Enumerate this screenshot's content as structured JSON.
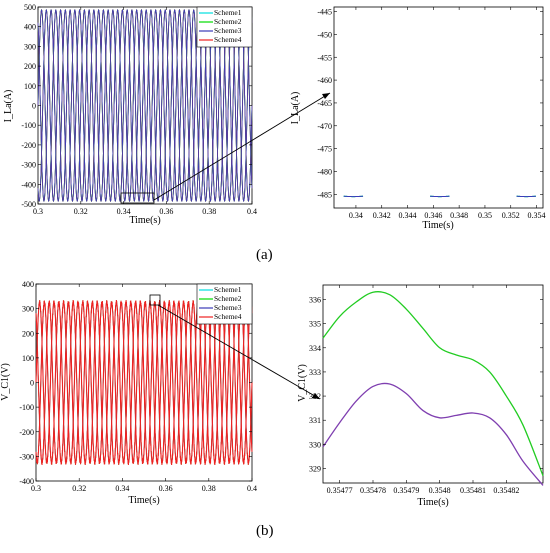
{
  "panels": {
    "a": "(a)",
    "b": "(b)"
  },
  "colors": {
    "scheme1": "#00e0e0",
    "scheme2": "#00dd00",
    "scheme3": "#3b3bb8",
    "scheme4": "#ee2222",
    "zoom_main_green": "#22cc22",
    "zoom_main_purple": "#7f3fb0"
  },
  "chart_data": [
    {
      "id": "a-main",
      "type": "line",
      "xlabel": "Time(s)",
      "ylabel": "I_La(A)",
      "xlim": [
        0.3,
        0.4
      ],
      "ylim": [
        -500,
        500
      ],
      "xticks": [
        0.3,
        0.32,
        0.34,
        0.36,
        0.38,
        0.4
      ],
      "yticks": [
        500,
        400,
        300,
        200,
        100,
        0,
        -100,
        -200,
        -300,
        -400,
        -500
      ],
      "xtick_labels": [
        "0.3",
        "0.32",
        "0.34",
        "0.36",
        "0.38",
        "0.4"
      ],
      "ytick_labels": [
        "500",
        "400",
        "300",
        "200",
        "100",
        "0",
        "-100",
        "-200",
        "-300",
        "-400",
        "-500"
      ],
      "grid": false,
      "legend_position": "top-right",
      "series": [
        {
          "name": "Scheme1",
          "waveform": "three-phase sinusoid",
          "amplitude": 485,
          "frequency_hz": 150
        },
        {
          "name": "Scheme2",
          "waveform": "three-phase sinusoid",
          "amplitude": 485,
          "frequency_hz": 150
        },
        {
          "name": "Scheme3",
          "waveform": "three-phase sinusoid",
          "amplitude": 485,
          "frequency_hz": 150
        },
        {
          "name": "Scheme4",
          "waveform": "three-phase sinusoid",
          "amplitude": 485,
          "frequency_hz": 150
        }
      ]
    },
    {
      "id": "a-zoom",
      "type": "line",
      "xlabel": "Time(s)",
      "ylabel": "I_La(A)",
      "xlim": [
        0.3383,
        0.3545
      ],
      "ylim": [
        -488,
        -444
      ],
      "xticks": [
        0.34,
        0.342,
        0.344,
        0.346,
        0.348,
        0.35,
        0.352,
        0.354
      ],
      "yticks": [
        -445,
        -450,
        -455,
        -460,
        -465,
        -470,
        -475,
        -480,
        -485
      ],
      "xtick_labels": [
        "0.34",
        "0.342",
        "0.344",
        "0.346",
        "0.348",
        "0.35",
        "0.352",
        "0.354"
      ],
      "ytick_labels": [
        "-445",
        "-450",
        "-455",
        "-460",
        "-465",
        "-470",
        "-475",
        "-480",
        "-485"
      ],
      "troughs_x": [
        0.3398,
        0.3465,
        0.3532
      ],
      "trough_y": -485.5
    },
    {
      "id": "b-main",
      "type": "line",
      "xlabel": "Time(s)",
      "ylabel": "V_C1(V)",
      "xlim": [
        0.3,
        0.4
      ],
      "ylim": [
        -400,
        400
      ],
      "xticks": [
        0.3,
        0.32,
        0.34,
        0.36,
        0.38,
        0.4
      ],
      "yticks": [
        400,
        300,
        200,
        100,
        0,
        -100,
        -200,
        -300,
        -400
      ],
      "xtick_labels": [
        "0.3",
        "0.32",
        "0.34",
        "0.36",
        "0.38",
        "0.4"
      ],
      "ytick_labels": [
        "400",
        "300",
        "200",
        "100",
        "0",
        "-100",
        "-200",
        "-300",
        "-400"
      ],
      "grid": false,
      "legend_position": "top-right",
      "series": [
        {
          "name": "Scheme1",
          "waveform": "three-phase sinusoid",
          "amplitude": 325,
          "frequency_hz": 150
        },
        {
          "name": "Scheme2",
          "waveform": "three-phase sinusoid",
          "amplitude": 325,
          "frequency_hz": 150
        },
        {
          "name": "Scheme3",
          "waveform": "three-phase sinusoid",
          "amplitude": 325,
          "frequency_hz": 150
        },
        {
          "name": "Scheme4",
          "waveform": "three-phase sinusoid",
          "amplitude": 325,
          "frequency_hz": 150
        }
      ]
    },
    {
      "id": "b-zoom",
      "type": "line",
      "xlabel": "Time(s)",
      "ylabel": "V_C1(V)",
      "xlim": [
        0.354765,
        0.354831
      ],
      "ylim": [
        328.4,
        336.6
      ],
      "xticks": [
        0.35477,
        0.35478,
        0.35479,
        0.3548,
        0.35481,
        0.35482
      ],
      "yticks": [
        336,
        335,
        334,
        333,
        332,
        331,
        330,
        329
      ],
      "xtick_labels": [
        "0.35477",
        "0.35478",
        "0.35479",
        "0.3548",
        "0.35481",
        "0.35482"
      ],
      "ytick_labels": [
        "336",
        "335",
        "334",
        "333",
        "332",
        "331",
        "330",
        "329"
      ],
      "series": [
        {
          "color_key": "zoom_main_green",
          "x": [
            0.354765,
            0.35477,
            0.354775,
            0.35478,
            0.354785,
            0.35479,
            0.354795,
            0.3548,
            0.354805,
            0.35481,
            0.354815,
            0.35482,
            0.354825,
            0.354831
          ],
          "y": [
            334.4,
            335.3,
            335.9,
            336.3,
            336.2,
            335.6,
            334.8,
            334.0,
            333.7,
            333.5,
            333.0,
            332.0,
            330.8,
            328.7
          ]
        },
        {
          "color_key": "zoom_main_purple",
          "x": [
            0.354765,
            0.35477,
            0.354775,
            0.35478,
            0.354785,
            0.35479,
            0.354795,
            0.3548,
            0.354805,
            0.35481,
            0.354815,
            0.35482,
            0.354825,
            0.354831
          ],
          "y": [
            329.9,
            330.9,
            331.8,
            332.4,
            332.5,
            332.1,
            331.4,
            331.1,
            331.2,
            331.3,
            331.1,
            330.4,
            329.3,
            328.3
          ]
        }
      ]
    }
  ]
}
